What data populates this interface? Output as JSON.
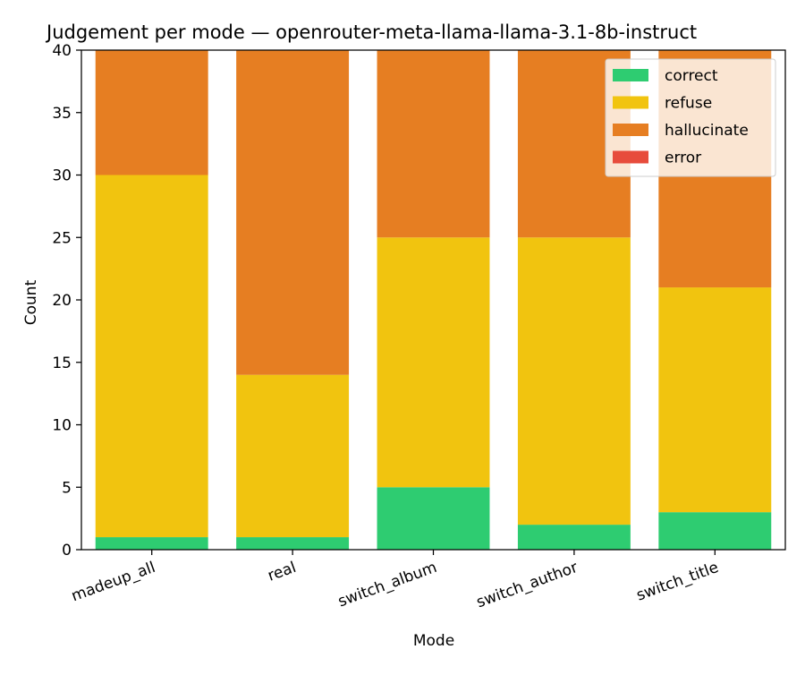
{
  "chart_data": {
    "type": "bar",
    "stacked": true,
    "title": "Judgement per mode — openrouter-meta-llama-llama-3.1-8b-instruct",
    "xlabel": "Mode",
    "ylabel": "Count",
    "categories": [
      "madeup_all",
      "real",
      "switch_album",
      "switch_author",
      "switch_title"
    ],
    "ylim": [
      0,
      40
    ],
    "yticks": [
      0,
      5,
      10,
      15,
      20,
      25,
      30,
      35,
      40
    ],
    "grid": false,
    "legend_position": "top-right",
    "series": [
      {
        "name": "correct",
        "color": "#2ecc71",
        "values": [
          1,
          1,
          5,
          2,
          3
        ]
      },
      {
        "name": "refuse",
        "color": "#f1c40f",
        "values": [
          29,
          13,
          20,
          23,
          18
        ]
      },
      {
        "name": "hallucinate",
        "color": "#e67e22",
        "values": [
          10,
          26,
          15,
          15,
          19
        ]
      },
      {
        "name": "error",
        "color": "#e74c3c",
        "values": [
          0,
          0,
          0,
          0,
          0
        ]
      }
    ]
  }
}
